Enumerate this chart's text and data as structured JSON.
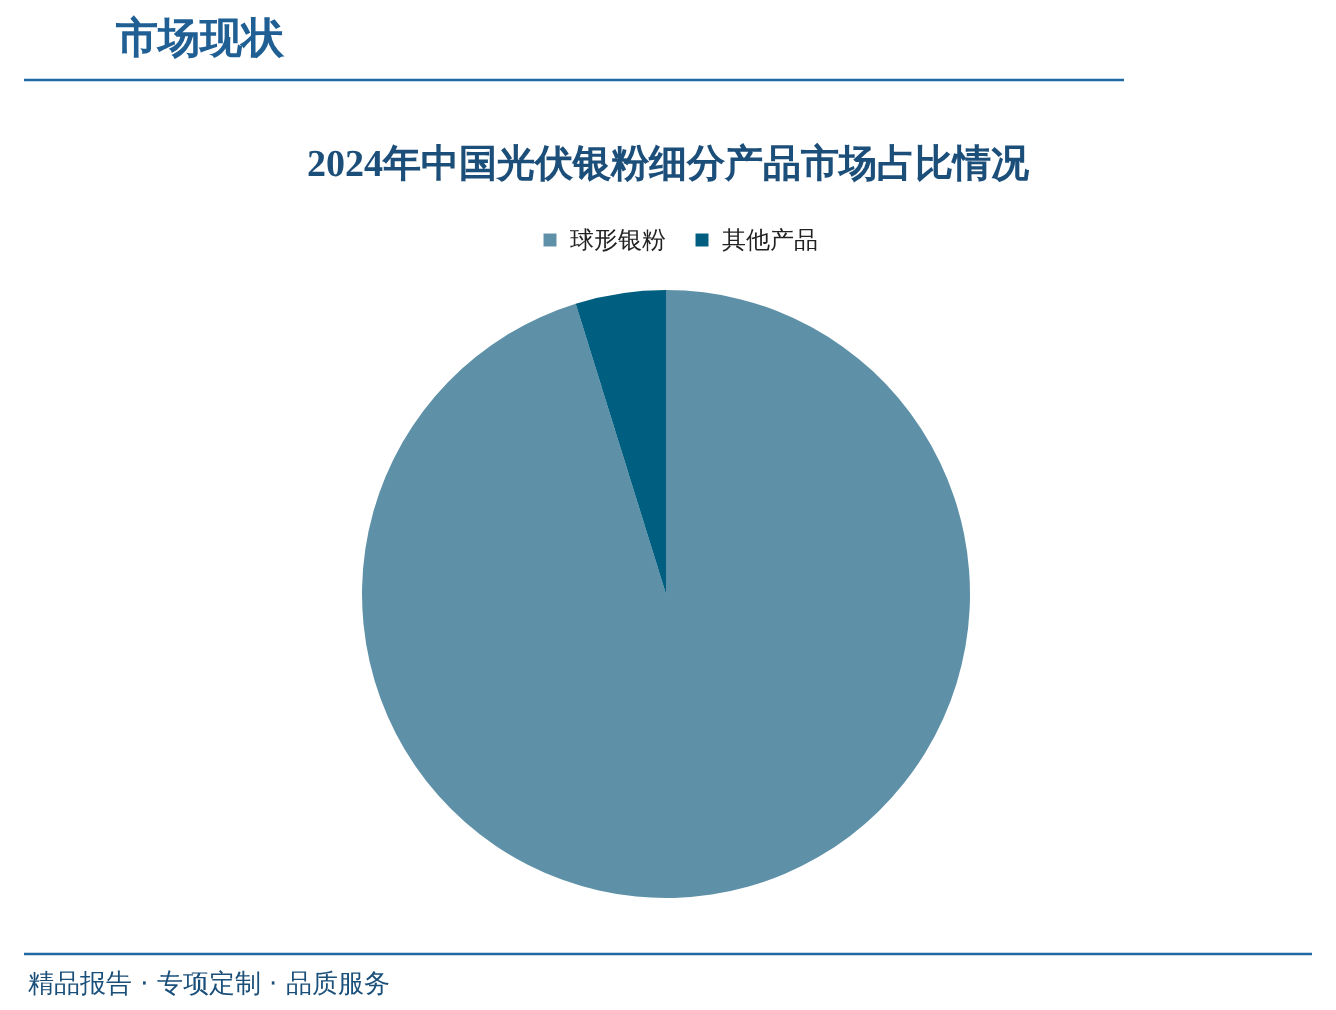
{
  "chart_data": {
    "type": "pie",
    "title": "2024年中国光伏银粉细分产品市场占比情况",
    "categories": [
      "球形银粉",
      "其他产品"
    ],
    "values": [
      95.2,
      4.8
    ],
    "colors": [
      "#5e91a8",
      "#005e80"
    ],
    "legend": "top",
    "annotations": [
      "市场现状",
      "精品报告 · 专项定制 · 品质服务"
    ]
  }
}
